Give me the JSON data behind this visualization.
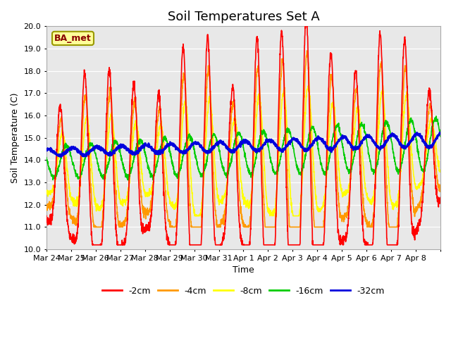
{
  "title": "Soil Temperatures Set A",
  "xlabel": "Time",
  "ylabel": "Soil Temperature (C)",
  "ylim": [
    10.0,
    20.0
  ],
  "yticks": [
    10.0,
    11.0,
    12.0,
    13.0,
    14.0,
    15.0,
    16.0,
    17.0,
    18.0,
    19.0,
    20.0
  ],
  "legend_labels": [
    "-2cm",
    "-4cm",
    "-8cm",
    "-16cm",
    "-32cm"
  ],
  "line_colors": [
    "#ff0000",
    "#ff9900",
    "#ffff00",
    "#00cc00",
    "#0000dd"
  ],
  "line_widths": [
    1.2,
    1.2,
    1.2,
    1.2,
    1.8
  ],
  "background_color": "#e8e8e8",
  "annotation_text": "BA_met",
  "annotation_box_facecolor": "#ffff99",
  "annotation_box_edgecolor": "#999900",
  "annotation_text_color": "#880000",
  "xtick_labels": [
    "Mar 24",
    "Mar 25",
    "Mar 26",
    "Mar 27",
    "Mar 28",
    "Mar 29",
    "Mar 30",
    "Mar 31",
    "Apr 1",
    "Apr 2",
    "Apr 3",
    "Apr 4",
    "Apr 5",
    "Apr 6",
    "Apr 7",
    "Apr 8"
  ],
  "title_fontsize": 13,
  "axis_fontsize": 9,
  "tick_fontsize": 8
}
